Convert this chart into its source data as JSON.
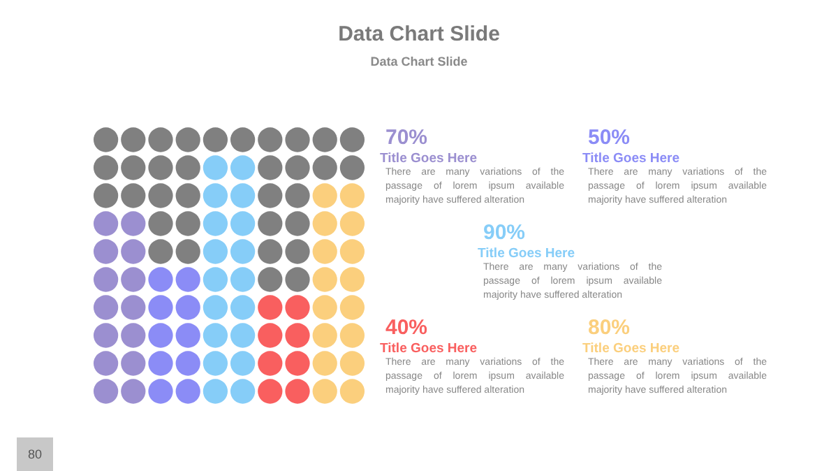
{
  "chart_data": {
    "type": "other",
    "title": "Data Chart Slide",
    "subtitle": "Data Chart Slide",
    "categories": [
      null,
      null,
      null,
      null,
      null
    ],
    "series": [
      {
        "colors": [
          "#9b8fd0",
          "#8b8cf6",
          "#86cdf8",
          "#f95f5f",
          "#fbcf7d"
        ],
        "values": [
          70,
          50,
          90,
          40,
          80
        ],
        "value_labels": [
          "70%",
          "50%",
          "90%",
          "40%",
          "80%"
        ]
      }
    ],
    "annotations": [
      "Title Goes Here",
      "There are many variations of the passage of lorem ipsum available majority have suffered alteration",
      "Title Goes Here",
      "There are many variations of the passage of lorem ipsum available majority have suffered alteration",
      "Title Goes Here",
      "There are many variations of the passage of lorem ipsum available majority have suffered alteration",
      "Title Goes Here",
      "There are many variations of the passage of lorem ipsum available majority have suffered alteration",
      "Title Goes Here",
      "There are many variations of the passage of lorem ipsum available majority have suffered alteration",
      "80"
    ]
  }
}
